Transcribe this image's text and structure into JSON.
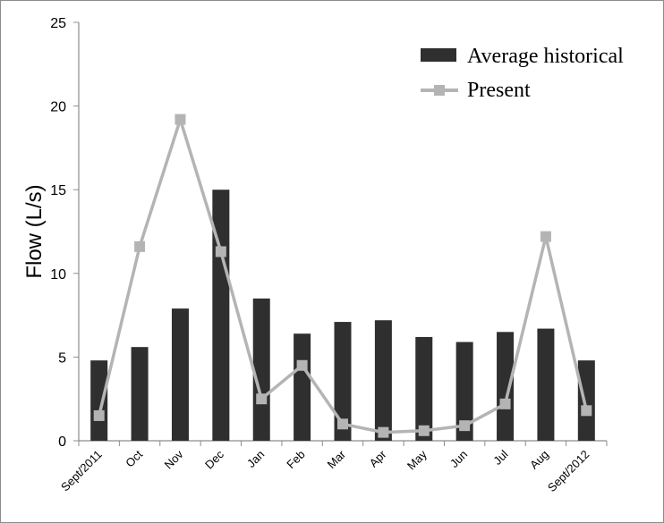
{
  "chart_data": {
    "type": "bar",
    "title": "",
    "xlabel": "",
    "ylabel": "Flow (L/s)",
    "ylim": [
      0,
      25
    ],
    "yticks": [
      0,
      5,
      10,
      15,
      20,
      25
    ],
    "grid": false,
    "legend_position": "top-right",
    "categories": [
      "Sept/2011",
      "Oct",
      "Nov",
      "Dec",
      "Jan",
      "Feb",
      "Mar",
      "Apr",
      "May",
      "Jun",
      "Jul",
      "Aug",
      "Sept/2012"
    ],
    "series": [
      {
        "name": "Average historical",
        "type": "bar",
        "color": "#2f2f2f",
        "values": [
          4.8,
          5.6,
          7.9,
          15.0,
          8.5,
          6.4,
          7.1,
          7.2,
          6.2,
          5.9,
          6.5,
          6.7,
          4.8
        ]
      },
      {
        "name": "Present",
        "type": "line",
        "marker": "square",
        "color": "#b4b4b4",
        "values": [
          1.5,
          11.6,
          19.2,
          11.3,
          2.5,
          4.5,
          1.0,
          0.5,
          0.6,
          0.9,
          2.2,
          12.2,
          1.8
        ]
      }
    ]
  }
}
